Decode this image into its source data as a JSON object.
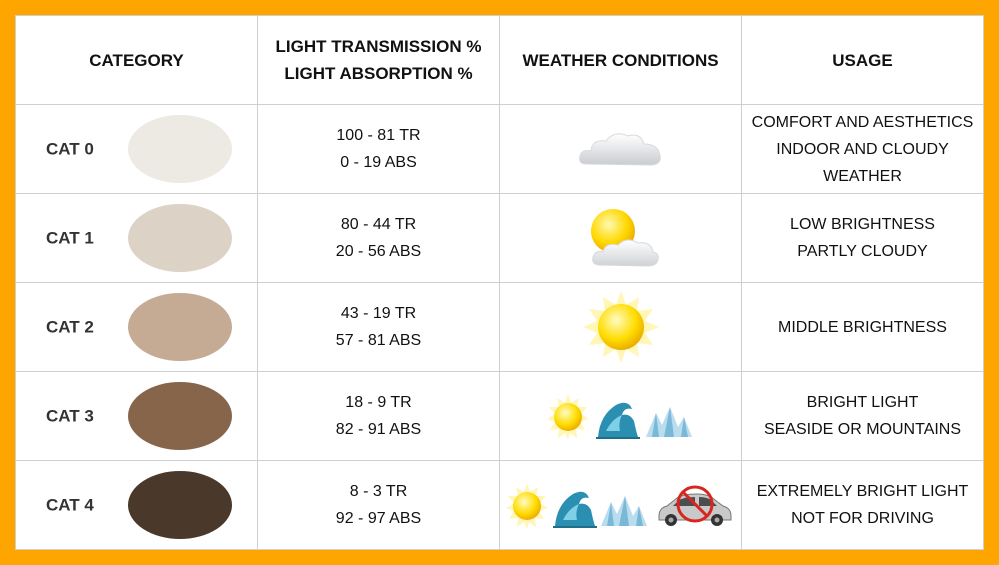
{
  "headers": {
    "category": "CATEGORY",
    "light_line1": "LIGHT TRANSMISSION %",
    "light_line2": "LIGHT ABSORPTION %",
    "weather": "WEATHER CONDITIONS",
    "usage": "USAGE"
  },
  "rows": [
    {
      "category": "CAT 0",
      "lens_color": "#ede9e3",
      "transmission": "100 - 81 TR",
      "absorption": "0 - 19 ABS",
      "weather_icons": [
        "cloud-icon"
      ],
      "usage": [
        "COMFORT AND AESTHETICS",
        "INDOOR AND CLOUDY",
        "WEATHER"
      ]
    },
    {
      "category": "CAT 1",
      "lens_color": "#ddd2c6",
      "transmission": "80 - 44 TR",
      "absorption": "20 - 56 ABS",
      "weather_icons": [
        "sun-behind-cloud-icon"
      ],
      "usage": [
        "LOW BRIGHTNESS",
        "PARTLY CLOUDY"
      ]
    },
    {
      "category": "CAT 2",
      "lens_color": "#c5ab93",
      "transmission": "43 - 19 TR",
      "absorption": "57 - 81 ABS",
      "weather_icons": [
        "sun-icon"
      ],
      "usage": [
        "MIDDLE BRIGHTNESS"
      ]
    },
    {
      "category": "CAT 3",
      "lens_color": "#86654b",
      "transmission": "18 - 9 TR",
      "absorption": "82 - 91 ABS",
      "weather_icons": [
        "sun-icon",
        "wave-icon",
        "mountain-icon"
      ],
      "usage": [
        "BRIGHT LIGHT",
        "SEASIDE OR MOUNTAINS"
      ]
    },
    {
      "category": "CAT 4",
      "lens_color": "#4a392b",
      "transmission": "8 - 3 TR",
      "absorption": "92 - 97 ABS",
      "weather_icons": [
        "sun-icon",
        "wave-icon",
        "mountain-icon",
        "no-driving-icon"
      ],
      "usage": [
        "EXTREMELY BRIGHT LIGHT",
        "NOT FOR DRIVING"
      ]
    }
  ],
  "colors": {
    "frame": "#ffa500",
    "border": "#cfcfcf"
  }
}
